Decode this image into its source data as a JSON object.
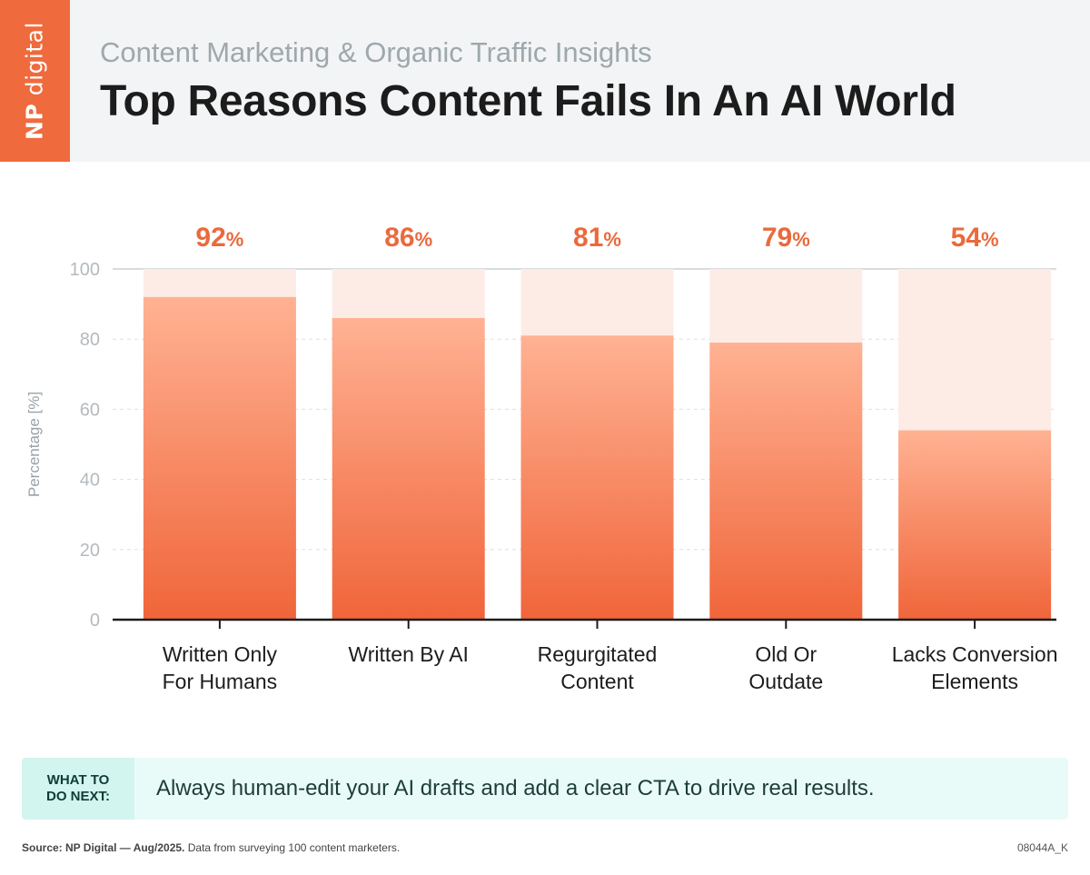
{
  "header": {
    "logo_np": "NP",
    "logo_digital": "digital",
    "subtitle": "Content Marketing & Organic Traffic Insights",
    "title": "Top Reasons Content Fails In An AI World"
  },
  "chart_data": {
    "type": "bar",
    "categories": [
      [
        "Written Only",
        "For Humans"
      ],
      [
        "Written By AI"
      ],
      [
        "Regurgitated",
        "Content"
      ],
      [
        "Old Or",
        "Outdate"
      ],
      [
        "Lacks Conversion",
        "Elements"
      ]
    ],
    "values": [
      92,
      86,
      81,
      79,
      54
    ],
    "value_labels": [
      "92",
      "86",
      "81",
      "79",
      "54"
    ],
    "value_suffix": "%",
    "ylabel": "Percentage [%]",
    "ylim": [
      0,
      100
    ],
    "yticks": [
      "0",
      "20",
      "40",
      "60",
      "80",
      "100"
    ],
    "grid": true,
    "colors": {
      "bar_top": "#ffb293",
      "bar_bottom": "#f0653a",
      "track": "#fdece6",
      "label": "#ea6a3c"
    }
  },
  "cta": {
    "label_line1": "WHAT TO",
    "label_line2": "DO NEXT:",
    "text": "Always human-edit your AI drafts and add a clear CTA to drive real results."
  },
  "footer": {
    "source_bold": "Source: NP Digital — Aug/2025.",
    "source_rest": " Data from surveying 100 content marketers.",
    "code": "08044A_K"
  }
}
